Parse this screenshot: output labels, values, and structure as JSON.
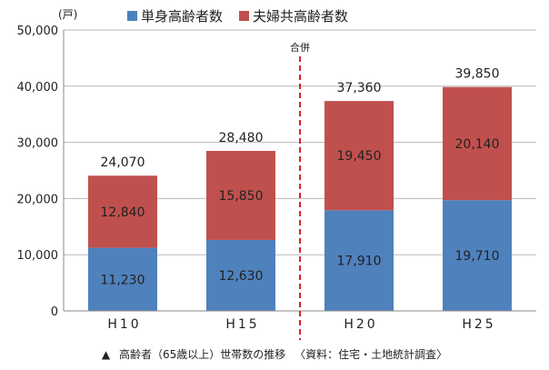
{
  "chart_data": {
    "type": "bar",
    "stacked": true,
    "categories": [
      "H10",
      "H15",
      "H20",
      "H25"
    ],
    "series": [
      {
        "name": "単身高齢者数",
        "values": [
          11230,
          12630,
          17910,
          19710
        ],
        "labels": [
          "11,230",
          "12,630",
          "17,910",
          "19,710"
        ],
        "color": "#4f81bd"
      },
      {
        "name": "夫婦共高齢者数",
        "values": [
          12840,
          15850,
          19450,
          20140
        ],
        "labels": [
          "12,840",
          "15,850",
          "19,450",
          "20,140"
        ],
        "color": "#c0504d"
      }
    ],
    "totals": [
      24070,
      28480,
      37360,
      39850
    ],
    "total_labels": [
      "24,070",
      "28,480",
      "37,360",
      "39,850"
    ],
    "ylim": [
      0,
      50000
    ],
    "yticks": [
      0,
      10000,
      20000,
      30000,
      40000,
      50000
    ],
    "ytick_labels": [
      "0",
      "10,000",
      "20,000",
      "30,000",
      "40,000",
      "50,000"
    ],
    "unit_label": "(戸)",
    "legend_position": "top",
    "divider": {
      "after_category_index": 1,
      "label": "合併",
      "color": "#e02020"
    }
  },
  "caption": {
    "marker": "▲",
    "text": "高齢者（65歳以上）世帯数の推移",
    "source": "〈資料：住宅・土地統計調査〉"
  }
}
